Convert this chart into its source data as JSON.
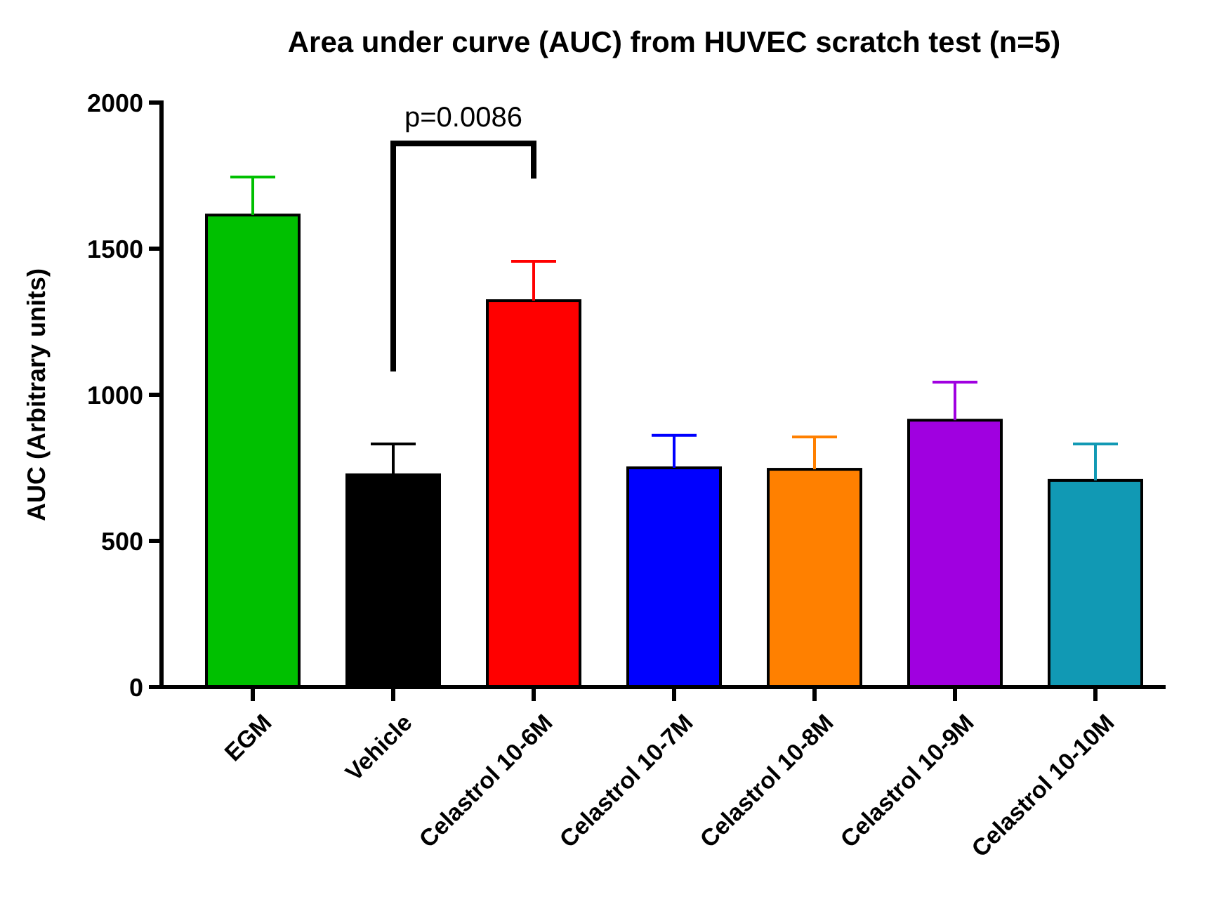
{
  "chart_data": {
    "type": "bar",
    "title": "Area under curve (AUC) from HUVEC scratch test (n=5)",
    "ylabel": "AUC (Arbitrary units)",
    "categories": [
      "EGM",
      "Vehicle",
      "Celastrol 10-6M",
      "Celastrol 10-7M",
      "Celastrol 10-8M",
      "Celastrol 10-9M",
      "Celastrol 10-10M"
    ],
    "values": [
      1615,
      726,
      1322,
      750,
      745,
      913,
      707
    ],
    "colors": [
      "#00c000",
      "#000000",
      "#ff0000",
      "#0000ff",
      "#ff8000",
      "#a000e0",
      "#1199b4"
    ],
    "errors": [
      [
        1615,
        1745
      ],
      [
        726,
        832
      ],
      [
        1322,
        1457
      ],
      [
        750,
        861
      ],
      [
        745,
        856
      ],
      [
        913,
        1043
      ],
      [
        707,
        832
      ]
    ],
    "ylim": [
      0,
      2000
    ],
    "yticks": [
      0,
      500,
      1000,
      1500,
      2000
    ],
    "annotations": [
      "p=0.0086"
    ]
  }
}
